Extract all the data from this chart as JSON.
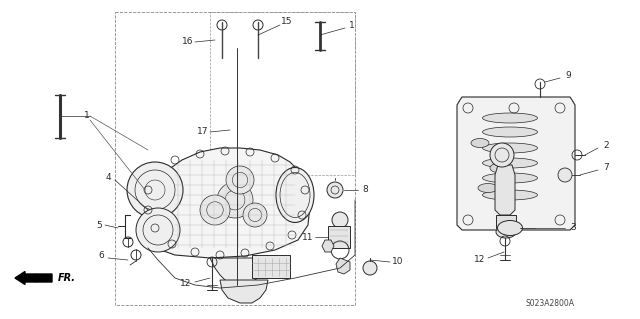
{
  "background_color": "#ffffff",
  "diagram_code": "S023A2800A",
  "fig_width": 6.4,
  "fig_height": 3.19,
  "dpi": 100,
  "line_color": "#2a2a2a",
  "label_fontsize": 6.5,
  "diagram_code_fontsize": 5.5
}
